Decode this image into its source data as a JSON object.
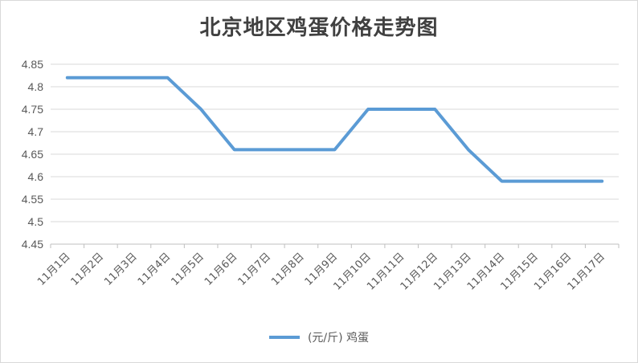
{
  "chart_data": {
    "type": "line",
    "title": "北京地区鸡蛋价格走势图",
    "categories": [
      "11月1日",
      "11月2日",
      "11月3日",
      "11月4日",
      "11月5日",
      "11月6日",
      "11月7日",
      "11月8日",
      "11月9日",
      "11月10日",
      "11月11日",
      "11月12日",
      "11月13日",
      "11月14日",
      "11月15日",
      "11月16日",
      "11月17日"
    ],
    "series": [
      {
        "name": "(元/斤) 鸡蛋",
        "values": [
          4.82,
          4.82,
          4.82,
          4.82,
          4.75,
          4.66,
          4.66,
          4.66,
          4.66,
          4.75,
          4.75,
          4.75,
          4.66,
          4.59,
          4.59,
          4.59,
          4.59
        ],
        "color": "#5b9bd5"
      }
    ],
    "ylim": [
      4.45,
      4.85
    ],
    "yticks": [
      "4.45",
      "4.5",
      "4.55",
      "4.6",
      "4.65",
      "4.7",
      "4.75",
      "4.8",
      "4.85"
    ],
    "grid": true,
    "legend": "bottom"
  }
}
